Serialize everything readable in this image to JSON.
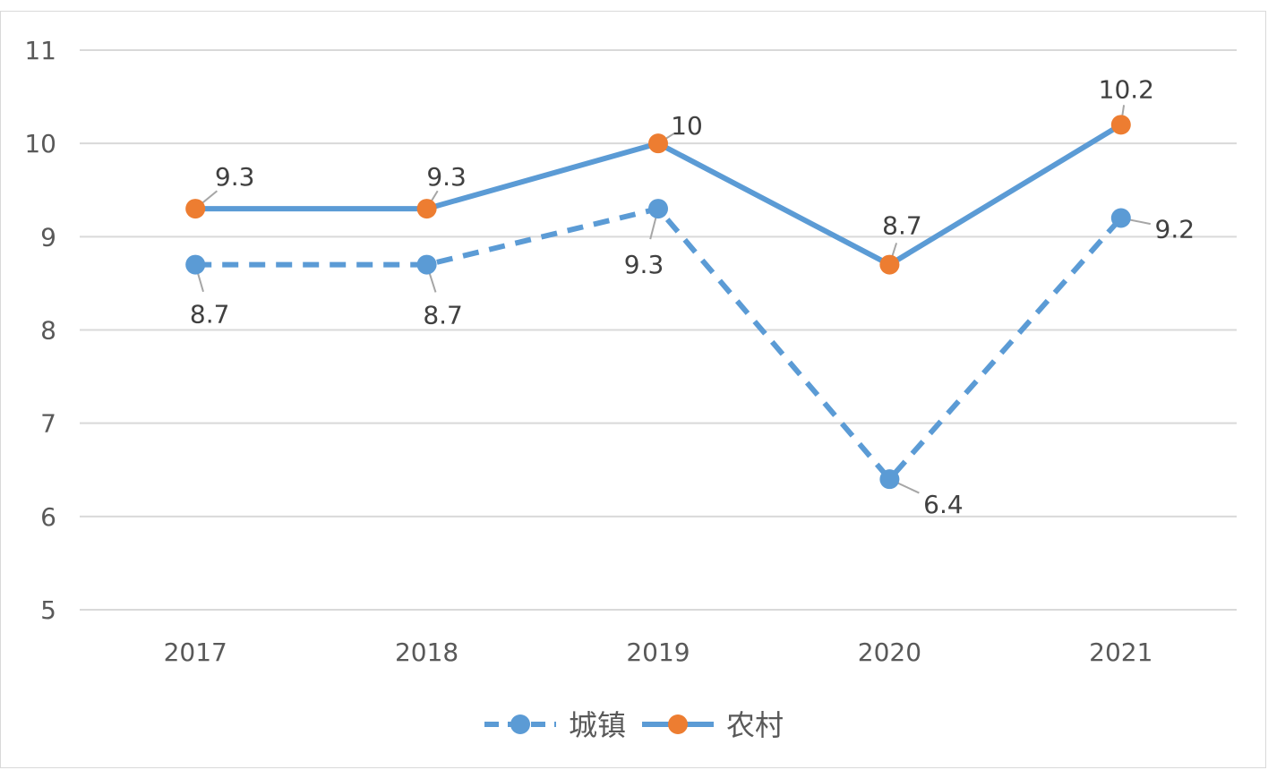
{
  "chart_data": {
    "type": "line",
    "title": "",
    "xlabel": "",
    "ylabel": "",
    "categories": [
      "2017",
      "2018",
      "2019",
      "2020",
      "2021"
    ],
    "ylim": [
      5,
      11
    ],
    "yticks": [
      "5",
      "6",
      "7",
      "8",
      "9",
      "10",
      "11"
    ],
    "grid": true,
    "legend_position": "bottom",
    "series": [
      {
        "name": "城镇",
        "values": [
          8.7,
          8.7,
          9.3,
          6.4,
          9.2
        ],
        "labels": [
          "8.7",
          "8.7",
          "9.3",
          "6.4",
          "9.2"
        ],
        "line_style": "dashed",
        "line_color": "#5b9bd5",
        "marker_color": "#5b9bd5"
      },
      {
        "name": "农村",
        "values": [
          9.3,
          9.3,
          10,
          8.7,
          10.2
        ],
        "labels": [
          "9.3",
          "9.3",
          "10",
          "8.7",
          "10.2"
        ],
        "line_style": "solid",
        "line_color": "#5b9bd5",
        "marker_color": "#ed7d31"
      }
    ]
  }
}
